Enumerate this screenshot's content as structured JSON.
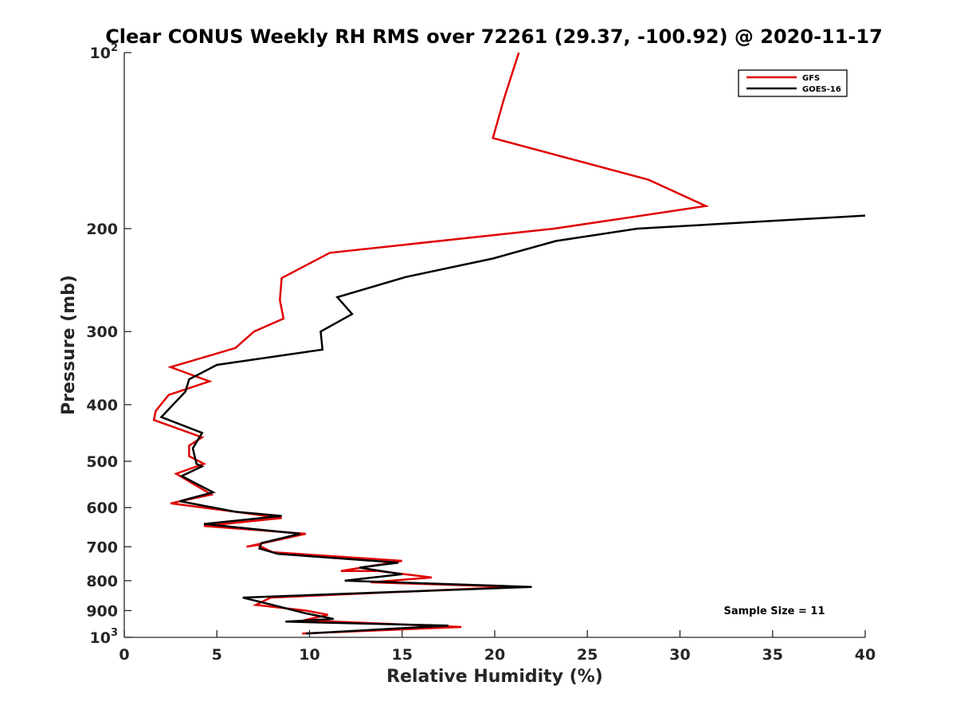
{
  "colors": {
    "gfs": "#e00000",
    "goes": "#000000",
    "axis": "#262626",
    "background": "#ffffff"
  },
  "chart_data": {
    "type": "line",
    "title": "Clear CONUS Weekly RH RMS over 72261 (29.37, -100.92) @ 2020-11-17",
    "xlabel": "Relative Humidity (%)",
    "ylabel": "Pressure (mb)",
    "xlim": [
      0,
      40
    ],
    "ylim": [
      100,
      1000
    ],
    "yscale": "log",
    "y_reversed": true,
    "grid": false,
    "legend_position": "top-right",
    "x_ticks": [
      "0",
      "5",
      "10",
      "15",
      "20",
      "25",
      "30",
      "35",
      "40"
    ],
    "y_ticks": [
      {
        "value": 100,
        "base": "10",
        "exp": "2"
      },
      {
        "value": 200,
        "label": "200"
      },
      {
        "value": 300,
        "label": "300"
      },
      {
        "value": 400,
        "label": "400"
      },
      {
        "value": 500,
        "label": "500"
      },
      {
        "value": 600,
        "label": "600"
      },
      {
        "value": 700,
        "label": "700"
      },
      {
        "value": 800,
        "label": "800"
      },
      {
        "value": 900,
        "label": "900"
      },
      {
        "value": 1000,
        "base": "10",
        "exp": "3"
      }
    ],
    "annotation": "Sample Size = 11",
    "series": [
      {
        "name": "GFS",
        "color": "#e00000",
        "x": [
          21.3,
          20.5,
          19.9,
          28.3,
          31.4,
          23.2,
          11.1,
          8.5,
          8.4,
          8.6,
          7.0,
          6.0,
          2.5,
          4.6,
          2.4,
          1.7,
          1.6,
          4.2,
          3.5,
          3.5,
          4.3,
          2.8,
          4.7,
          2.5,
          6.0,
          8.5,
          4.3,
          9.8,
          6.6,
          7.2,
          8.0,
          15.0,
          11.7,
          13.7,
          16.6,
          13.3,
          21.0,
          7.9,
          7.1,
          9.8,
          11.0,
          9.7,
          18.2,
          9.6
        ],
        "y": [
          100,
          120,
          140,
          165,
          183,
          200,
          220,
          243,
          265,
          285,
          300,
          320,
          345,
          365,
          385,
          410,
          425,
          455,
          470,
          490,
          505,
          525,
          570,
          590,
          610,
          625,
          645,
          665,
          700,
          695,
          715,
          740,
          770,
          770,
          790,
          805,
          820,
          855,
          880,
          900,
          915,
          935,
          960,
          985
        ]
      },
      {
        "name": "GOES-16",
        "color": "#000000",
        "x": [
          40.0,
          27.7,
          23.3,
          19.9,
          15.2,
          11.5,
          12.3,
          10.6,
          10.7,
          5.0,
          3.5,
          3.3,
          2.0,
          4.2,
          3.7,
          3.8,
          3.9,
          4.2,
          3.1,
          4.8,
          3.0,
          6.0,
          8.5,
          4.3,
          9.5,
          7.4,
          7.3,
          8.3,
          14.8,
          12.7,
          15.0,
          11.9,
          22.0,
          6.4,
          8.0,
          9.8,
          11.3,
          8.7,
          17.5,
          9.8
        ],
        "y": [
          190,
          200,
          210,
          225,
          242,
          262,
          280,
          300,
          322,
          342,
          362,
          380,
          420,
          447,
          475,
          490,
          505,
          510,
          530,
          565,
          585,
          610,
          620,
          640,
          665,
          690,
          705,
          720,
          745,
          760,
          780,
          800,
          820,
          855,
          880,
          910,
          930,
          940,
          955,
          985
        ]
      }
    ]
  }
}
